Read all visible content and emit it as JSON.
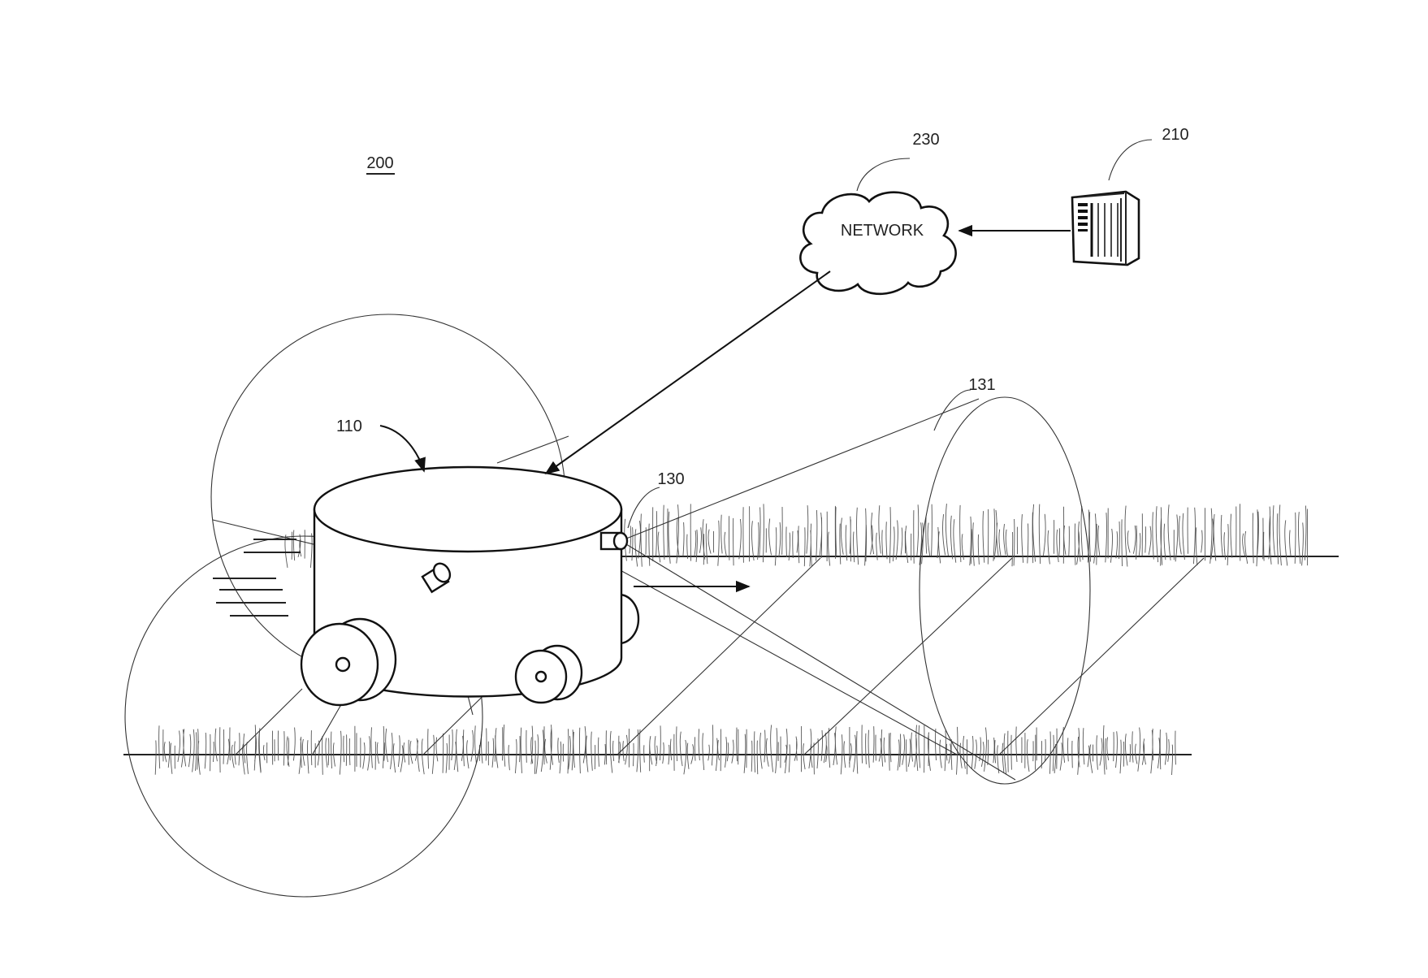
{
  "figure": {
    "number": "200",
    "labels": {
      "robot": "110",
      "camera": "130",
      "field_of_view": "131",
      "server": "210",
      "network": "230"
    },
    "network_text": "NETWORK",
    "components": [
      {
        "id": "robot",
        "kind": "lawn-mower-robot",
        "icon": "robot-mower-icon"
      },
      {
        "id": "camera",
        "kind": "camera-sensor",
        "icon": "camera-icon"
      },
      {
        "id": "server",
        "kind": "server-tower",
        "icon": "server-icon"
      },
      {
        "id": "network",
        "kind": "cloud",
        "icon": "cloud-icon"
      }
    ],
    "connections": [
      {
        "from": "server",
        "to": "network"
      },
      {
        "from": "network",
        "to": "robot"
      }
    ]
  }
}
